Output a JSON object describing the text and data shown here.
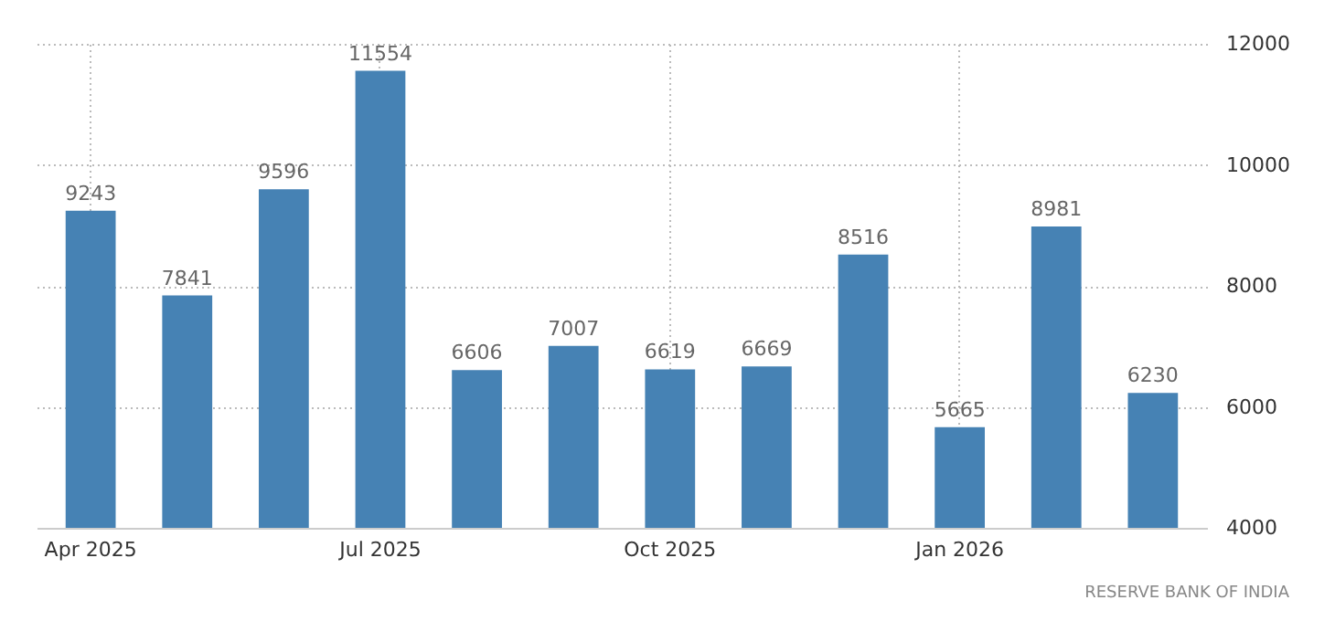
{
  "chart_data": {
    "type": "bar",
    "categories": [
      "Apr 2025",
      null,
      null,
      "Jul 2025",
      null,
      null,
      "Oct 2025",
      null,
      null,
      "Jan 2026",
      null,
      null
    ],
    "values": [
      9243,
      7841,
      9596,
      11554,
      6606,
      7007,
      6619,
      6669,
      8516,
      5665,
      8981,
      6230
    ],
    "color": "#4682b4",
    "ylim": [
      4000,
      12000
    ],
    "yticks": [
      4000,
      6000,
      8000,
      10000,
      12000
    ],
    "grid": true,
    "data_labels": true,
    "annotations": [
      "RESERVE BANK OF INDIA"
    ]
  }
}
